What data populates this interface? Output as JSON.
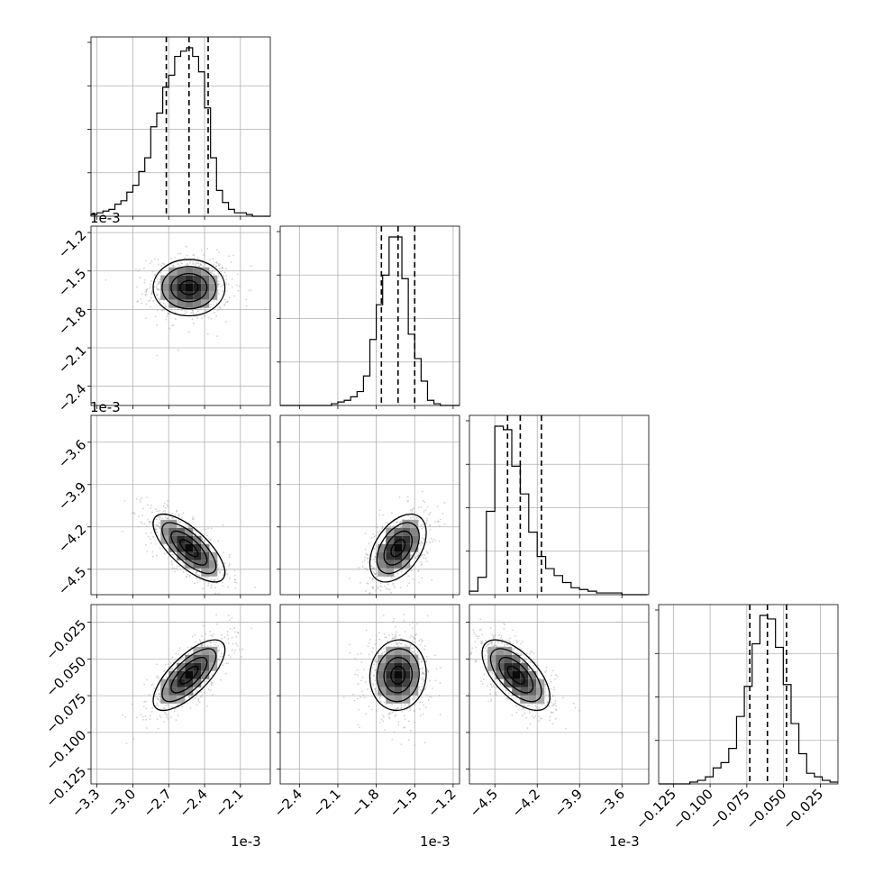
{
  "chart_data": {
    "type": "corner",
    "axis_offset_label": "1e-3",
    "grid": true,
    "parameters": [
      {
        "range": [
          -0.00335,
          -0.00185
        ],
        "ticks": [
          -0.0033,
          -0.003,
          -0.0027,
          -0.0024,
          -0.0021
        ],
        "tick_labels": [
          "−3.3",
          "−3.0",
          "−2.7",
          "−2.4",
          "−2.1"
        ],
        "offset": "1e-3",
        "mean": -0.00253,
        "sd": 0.00015,
        "quantiles": [
          -0.00272,
          -0.00253,
          -0.00237
        ]
      },
      {
        "range": [
          -0.00255,
          -0.00115
        ],
        "ticks": [
          -0.0024,
          -0.0021,
          -0.0018,
          -0.0015,
          -0.0012
        ],
        "tick_labels": [
          "−2.4",
          "−2.1",
          "−1.8",
          "−1.5",
          "−1.2"
        ],
        "offset": "1e-3",
        "mean": -0.00163,
        "sd": 0.00011,
        "quantiles": [
          -0.00176,
          -0.00163,
          -0.0015
        ]
      },
      {
        "range": [
          -0.00468,
          -0.00341
        ],
        "ticks": [
          -0.0045,
          -0.0042,
          -0.0039,
          -0.0036
        ],
        "tick_labels": [
          "−4.5",
          "−4.2",
          "−3.9",
          "−3.6"
        ],
        "offset": "1e-3",
        "mean": -0.00435,
        "sd": 0.00012,
        "quantiles": [
          -0.00441,
          -0.00432,
          -0.00417
        ]
      },
      {
        "range": [
          -0.135,
          -0.013
        ],
        "ticks": [
          -0.125,
          -0.1,
          -0.075,
          -0.05,
          -0.025
        ],
        "tick_labels": [
          "−0.125",
          "−0.100",
          "−0.075",
          "−0.050",
          "−0.025"
        ],
        "offset": "",
        "mean": -0.061,
        "sd": 0.012,
        "quantiles": [
          -0.073,
          -0.061,
          -0.048
        ]
      }
    ],
    "histograms": [
      {
        "param": 0,
        "bin_edges": [
          -0.00335,
          -0.0033,
          -0.00325,
          -0.0032,
          -0.00315,
          -0.0031,
          -0.00305,
          -0.003,
          -0.00295,
          -0.0029,
          -0.00285,
          -0.0028,
          -0.00275,
          -0.0027,
          -0.00265,
          -0.0026,
          -0.00255,
          -0.0025,
          -0.00245,
          -0.0024,
          -0.00235,
          -0.0023,
          -0.00225,
          -0.0022,
          -0.00215,
          -0.0021,
          -0.00205,
          -0.002,
          -0.00195,
          -0.0019,
          -0.00185
        ],
        "counts": [
          1,
          2,
          3,
          4,
          7,
          9,
          14,
          18,
          26,
          34,
          52,
          60,
          75,
          82,
          93,
          96,
          98,
          93,
          84,
          63,
          34,
          15,
          8,
          4,
          2,
          2,
          1,
          0,
          0,
          0
        ]
      },
      {
        "param": 1,
        "bin_edges": [
          -0.00255,
          -0.0025,
          -0.00245,
          -0.0024,
          -0.00235,
          -0.0023,
          -0.00225,
          -0.0022,
          -0.00215,
          -0.0021,
          -0.00205,
          -0.002,
          -0.00195,
          -0.0019,
          -0.00185,
          -0.0018,
          -0.00175,
          -0.0017,
          -0.00165,
          -0.0016,
          -0.00155,
          -0.0015,
          -0.00145,
          -0.0014,
          -0.00135,
          -0.0013,
          -0.00125,
          -0.0012,
          -0.00115
        ],
        "counts": [
          0,
          0,
          0,
          0,
          0,
          0,
          0,
          0,
          1,
          2,
          3,
          5,
          8,
          17,
          38,
          58,
          75,
          97,
          97,
          73,
          41,
          27,
          14,
          3,
          1,
          0,
          0,
          0
        ]
      },
      {
        "param": 2,
        "bin_edges": [
          -0.00468,
          -0.00462,
          -0.00456,
          -0.0045,
          -0.00444,
          -0.00438,
          -0.00432,
          -0.00426,
          -0.0042,
          -0.00414,
          -0.00408,
          -0.00402,
          -0.00396,
          -0.0039,
          -0.00384,
          -0.00378,
          -0.00372,
          -0.00366,
          -0.0036,
          -0.00354,
          -0.00348,
          -0.00342
        ],
        "counts": [
          2,
          10,
          48,
          97,
          95,
          74,
          58,
          36,
          22,
          15,
          11,
          7,
          4,
          3,
          2,
          1,
          1,
          1,
          0,
          0,
          0
        ]
      },
      {
        "param": 3,
        "bin_edges": [
          -0.135,
          -0.1297,
          -0.1244,
          -0.1191,
          -0.1138,
          -0.1085,
          -0.1032,
          -0.0979,
          -0.0926,
          -0.0873,
          -0.082,
          -0.0767,
          -0.0714,
          -0.0661,
          -0.0608,
          -0.0555,
          -0.0502,
          -0.0449,
          -0.0396,
          -0.0343,
          -0.029,
          -0.0237,
          -0.0184,
          -0.0131
        ],
        "counts": [
          0,
          0,
          0,
          0,
          1,
          2,
          4,
          9,
          12,
          20,
          38,
          55,
          79,
          95,
          93,
          77,
          56,
          34,
          17,
          6,
          4,
          2,
          1
        ]
      }
    ],
    "pairs": [
      {
        "x": 0,
        "y": 1,
        "correlation": 0.0
      },
      {
        "x": 0,
        "y": 2,
        "correlation": -0.72
      },
      {
        "x": 1,
        "y": 2,
        "correlation": 0.45
      },
      {
        "x": 0,
        "y": 3,
        "correlation": 0.72
      },
      {
        "x": 1,
        "y": 3,
        "correlation": 0.05
      },
      {
        "x": 2,
        "y": 3,
        "correlation": -0.62
      }
    ]
  }
}
